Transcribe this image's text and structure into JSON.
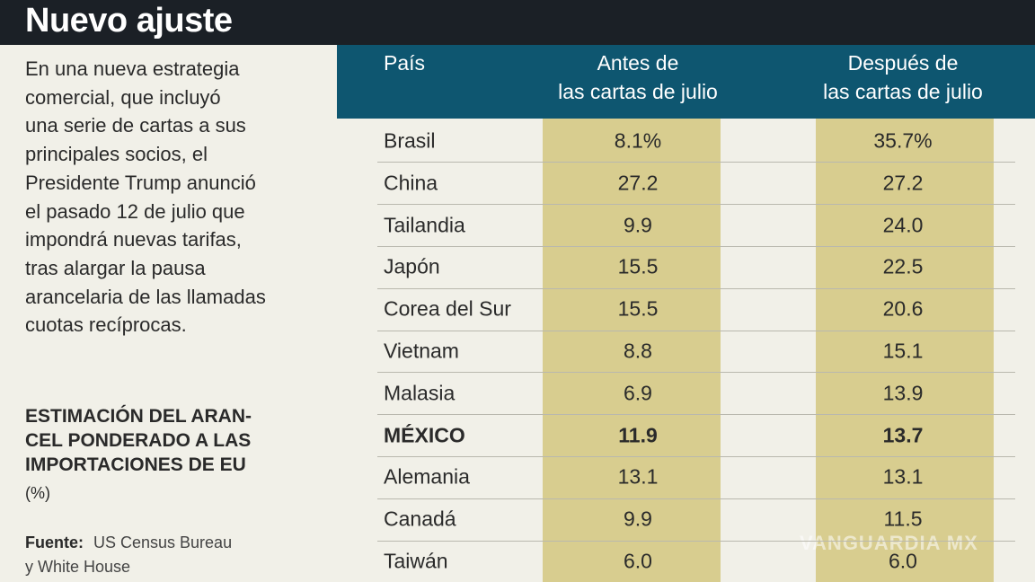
{
  "header": {
    "title": "Nuevo ajuste"
  },
  "intro": {
    "lines": [
      "En una nueva estrategia",
      "comercial, que incluyó",
      "una serie de cartas a sus",
      "principales socios, el",
      "Presidente Trump anunció",
      "el pasado 12 de julio que",
      "impondrá nuevas tarifas,",
      "tras alargar la pausa",
      "arancelaria de las llamadas",
      "cuotas recíprocas."
    ]
  },
  "subtitle": {
    "lines": [
      "ESTIMACIÓN DEL ARAN-",
      "CEL PONDERADO A LAS",
      "IMPORTACIONES DE EU"
    ],
    "unit": "(%)"
  },
  "source": {
    "label": "Fuente:",
    "lines": [
      "US Census Bureau",
      "y White House"
    ]
  },
  "table": {
    "headers": [
      [
        "País"
      ],
      [
        "Antes de",
        "las cartas de julio"
      ],
      [
        "Después de",
        "las cartas de julio"
      ]
    ],
    "rows": [
      {
        "cells": [
          "Brasil",
          "8.1%",
          "35.7%"
        ]
      },
      {
        "cells": [
          "China",
          "27.2",
          "27.2"
        ]
      },
      {
        "cells": [
          "Tailandia",
          "9.9",
          "24.0"
        ]
      },
      {
        "cells": [
          "Japón",
          "15.5",
          "22.5"
        ]
      },
      {
        "cells": [
          "Corea del Sur",
          "15.5",
          "20.6"
        ]
      },
      {
        "cells": [
          "Vietnam",
          "8.8",
          "15.1"
        ]
      },
      {
        "cells": [
          "Malasia",
          "6.9",
          "13.9"
        ]
      },
      {
        "cells": [
          "MÉXICO",
          "11.9",
          "13.7"
        ],
        "bold": true
      },
      {
        "cells": [
          "Alemania",
          "13.1",
          "13.1"
        ]
      },
      {
        "cells": [
          "Canadá",
          "9.9",
          "11.5"
        ]
      },
      {
        "cells": [
          "Taiwán",
          "6.0",
          "6.0"
        ]
      }
    ]
  },
  "watermark": "VANGUARDIA MX"
}
